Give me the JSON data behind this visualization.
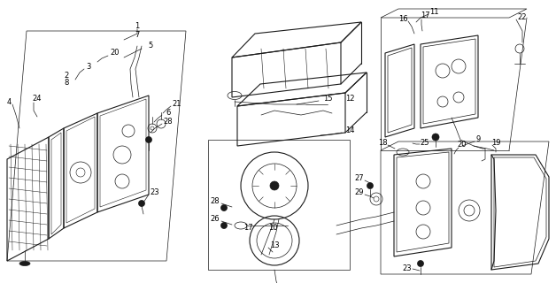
{
  "bg_color": "#ffffff",
  "line_color": "#1a1a1a",
  "lw_thin": 0.5,
  "lw_med": 0.8,
  "lw_thick": 1.2,
  "label_fontsize": 6.0,
  "figw": 6.28,
  "figh": 3.2,
  "dpi": 100
}
